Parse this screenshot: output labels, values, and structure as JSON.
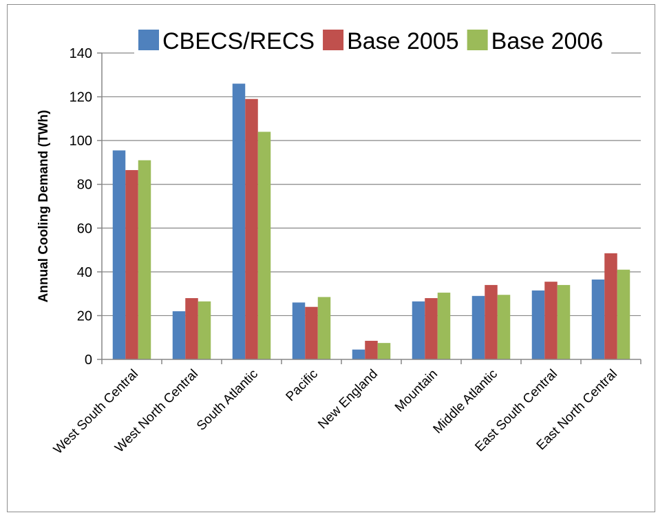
{
  "chart_data": {
    "type": "bar",
    "title": "",
    "xlabel": "",
    "ylabel": "Annual Cooling Demand (TWh)",
    "ylim": [
      0,
      140
    ],
    "yticks": [
      0,
      20,
      40,
      60,
      80,
      100,
      120,
      140
    ],
    "grid": true,
    "legend_position": "top",
    "categories": [
      "West South Central",
      "West North Central",
      "South Atlantic",
      "Pacific",
      "New England",
      "Mountain",
      "Middle Atlantic",
      "East South Central",
      "East North Central"
    ],
    "series": [
      {
        "name": "CBECS/RECS",
        "color": "#4f81bd",
        "values": [
          95.5,
          22,
          126,
          26,
          4.5,
          26.5,
          29,
          31.5,
          36.5
        ]
      },
      {
        "name": "Base 2005",
        "color": "#c0504d",
        "values": [
          86.5,
          28,
          119,
          24,
          8.5,
          28,
          34,
          35.5,
          48.5
        ]
      },
      {
        "name": "Base 2006",
        "color": "#9bbb59",
        "values": [
          91,
          26.5,
          104,
          28.5,
          7.5,
          30.5,
          29.5,
          34,
          41
        ]
      }
    ]
  }
}
